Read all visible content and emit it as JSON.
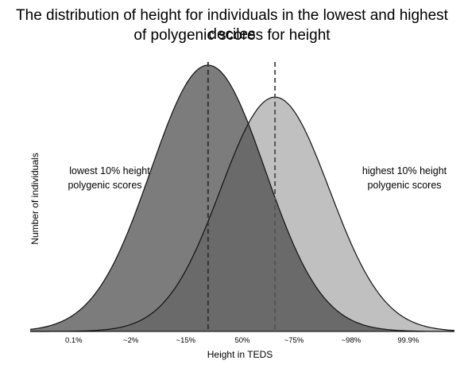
{
  "chart_data": {
    "type": "area",
    "title_line1": "The distribution of height for individuals in the lowest and highest deciles",
    "title_line2": "of polygenic scores for height",
    "xlabel": "Height in TEDS",
    "ylabel": "Number of individuals",
    "xlim": [
      -3.9,
      3.9
    ],
    "ticks": [
      {
        "label": "0.1%",
        "z": -3.1
      },
      {
        "label": "~2%",
        "z": -2.05
      },
      {
        "label": "~15%",
        "z": -1.04
      },
      {
        "label": "50%",
        "z": 0.0
      },
      {
        "label": "~75%",
        "z": 0.95
      },
      {
        "label": "~98%",
        "z": 2.0
      },
      {
        "label": "99.9%",
        "z": 3.05
      }
    ],
    "series": [
      {
        "name": "lowest 10% height polygenic scores",
        "line1": "lowest 10% height",
        "line2": "polygenic scores",
        "mean": -0.63,
        "sd": 1.05,
        "peak": 1.0,
        "color": "#7c7c7c"
      },
      {
        "name": "highest 10% height polygenic scores",
        "line1": "highest 10% height",
        "line2": "polygenic scores",
        "mean": 0.6,
        "sd": 1.0,
        "peak": 0.88,
        "color": "#c0c0c0"
      }
    ],
    "overlap_color": "#6a6a6a",
    "mean_lines": "dashed",
    "grid": false
  }
}
